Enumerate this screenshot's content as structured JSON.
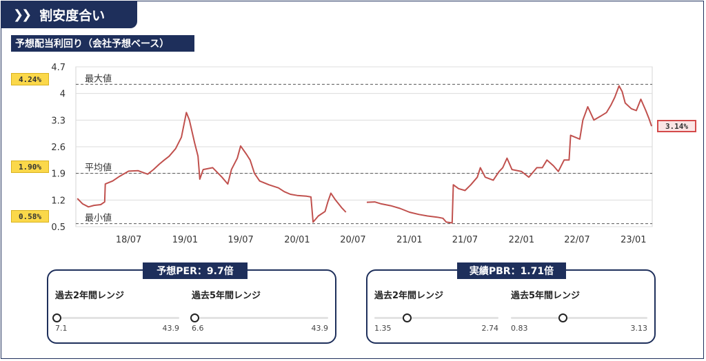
{
  "header": {
    "title": "割安度合い",
    "chevron_icon": "double-chevron-right-icon"
  },
  "subtitle": "予想配当利回り（会社予想ベース）",
  "colors": {
    "navy": "#1e2f5b",
    "line": "#c0504d",
    "tag_yellow": "#fbd84a",
    "tag_red_border": "#d44a4a"
  },
  "chart_data": {
    "type": "line",
    "ylim": [
      0.5,
      4.7
    ],
    "y_ticks": [
      "4.7",
      "4",
      "3.3",
      "2.6",
      "1.9",
      "1.2",
      "0.5"
    ],
    "x_ticks": [
      "18/07",
      "19/01",
      "19/07",
      "20/01",
      "20/07",
      "21/01",
      "21/07",
      "22/01",
      "22/07",
      "23/01"
    ],
    "grid": "horizontal",
    "reference_lines": [
      {
        "label": "最大値",
        "value": 4.24,
        "tag": "4.24%"
      },
      {
        "label": "平均値",
        "value": 1.9,
        "tag": "1.90%"
      },
      {
        "label": "最小値",
        "value": 0.58,
        "tag": "0.58%"
      }
    ],
    "current_tag": "3.14%",
    "series": [
      {
        "segments": [
          [
            [
              "2018-01-15",
              1.24
            ],
            [
              "2018-02-01",
              1.1
            ],
            [
              "2018-02-20",
              1.02
            ],
            [
              "2018-03-10",
              1.06
            ],
            [
              "2018-04-01",
              1.08
            ],
            [
              "2018-04-14",
              1.15
            ],
            [
              "2018-04-16",
              1.62
            ],
            [
              "2018-05-10",
              1.7
            ],
            [
              "2018-06-01",
              1.82
            ],
            [
              "2018-07-01",
              1.96
            ],
            [
              "2018-08-01",
              1.97
            ],
            [
              "2018-09-01",
              1.88
            ],
            [
              "2018-09-20",
              2.0
            ],
            [
              "2018-10-10",
              2.15
            ],
            [
              "2018-10-25",
              2.25
            ],
            [
              "2018-11-10",
              2.35
            ],
            [
              "2018-12-01",
              2.55
            ],
            [
              "2018-12-20",
              2.85
            ],
            [
              "2019-01-05",
              3.5
            ],
            [
              "2019-01-15",
              3.3
            ],
            [
              "2019-02-01",
              2.7
            ],
            [
              "2019-02-12",
              2.35
            ],
            [
              "2019-02-18",
              1.75
            ],
            [
              "2019-03-01",
              2.0
            ],
            [
              "2019-04-01",
              2.05
            ],
            [
              "2019-05-01",
              1.8
            ],
            [
              "2019-05-20",
              1.62
            ],
            [
              "2019-06-01",
              2.0
            ],
            [
              "2019-06-20",
              2.3
            ],
            [
              "2019-07-01",
              2.62
            ],
            [
              "2019-07-20",
              2.4
            ],
            [
              "2019-08-01",
              2.25
            ],
            [
              "2019-08-15",
              1.9
            ],
            [
              "2019-09-01",
              1.7
            ],
            [
              "2019-10-01",
              1.6
            ],
            [
              "2019-11-01",
              1.52
            ],
            [
              "2019-11-20",
              1.42
            ],
            [
              "2019-12-10",
              1.35
            ],
            [
              "2020-01-01",
              1.32
            ],
            [
              "2020-02-01",
              1.3
            ],
            [
              "2020-02-15",
              1.28
            ],
            [
              "2020-02-22",
              0.62
            ],
            [
              "2020-03-10",
              0.78
            ],
            [
              "2020-04-01",
              0.9
            ],
            [
              "2020-04-10",
              1.15
            ],
            [
              "2020-04-20",
              1.38
            ],
            [
              "2020-05-05",
              1.2
            ],
            [
              "2020-05-25",
              1.0
            ],
            [
              "2020-06-08",
              0.88
            ]
          ],
          [
            [
              "2020-08-15",
              1.14
            ],
            [
              "2020-09-10",
              1.15
            ],
            [
              "2020-10-01",
              1.1
            ],
            [
              "2020-11-01",
              1.05
            ],
            [
              "2020-12-01",
              0.98
            ],
            [
              "2021-01-01",
              0.88
            ],
            [
              "2021-02-01",
              0.82
            ],
            [
              "2021-03-01",
              0.78
            ],
            [
              "2021-04-01",
              0.75
            ],
            [
              "2021-04-20",
              0.72
            ],
            [
              "2021-05-01",
              0.62
            ],
            [
              "2021-05-20",
              0.6
            ],
            [
              "2021-05-24",
              1.6
            ],
            [
              "2021-06-10",
              1.5
            ],
            [
              "2021-07-01",
              1.45
            ],
            [
              "2021-07-20",
              1.6
            ],
            [
              "2021-08-10",
              1.8
            ],
            [
              "2021-08-20",
              2.05
            ],
            [
              "2021-09-05",
              1.8
            ],
            [
              "2021-10-01",
              1.72
            ],
            [
              "2021-10-20",
              1.95
            ],
            [
              "2021-11-01",
              2.05
            ],
            [
              "2021-11-15",
              2.3
            ],
            [
              "2021-12-01",
              2.0
            ],
            [
              "2022-01-01",
              1.95
            ],
            [
              "2022-01-25",
              1.8
            ],
            [
              "2022-02-20",
              2.05
            ],
            [
              "2022-03-10",
              2.05
            ],
            [
              "2022-03-25",
              2.25
            ],
            [
              "2022-04-15",
              2.1
            ],
            [
              "2022-05-01",
              1.95
            ],
            [
              "2022-05-20",
              2.25
            ],
            [
              "2022-06-05",
              2.25
            ],
            [
              "2022-06-10",
              2.9
            ],
            [
              "2022-06-25",
              2.85
            ],
            [
              "2022-07-10",
              2.8
            ],
            [
              "2022-07-20",
              3.3
            ],
            [
              "2022-08-05",
              3.65
            ],
            [
              "2022-08-25",
              3.3
            ],
            [
              "2022-09-15",
              3.4
            ],
            [
              "2022-10-05",
              3.5
            ],
            [
              "2022-10-20",
              3.7
            ],
            [
              "2022-11-01",
              3.9
            ],
            [
              "2022-11-15",
              4.2
            ],
            [
              "2022-11-25",
              4.05
            ],
            [
              "2022-12-05",
              3.75
            ],
            [
              "2022-12-25",
              3.6
            ],
            [
              "2023-01-10",
              3.55
            ],
            [
              "2023-01-25",
              3.85
            ],
            [
              "2023-02-10",
              3.55
            ],
            [
              "2023-02-20",
              3.35
            ],
            [
              "2023-03-01",
              3.14
            ]
          ]
        ]
      }
    ]
  },
  "panels": [
    {
      "title": "予想PER：9.7倍",
      "ranges": [
        {
          "label": "過去2年間レンジ",
          "min": "7.1",
          "max": "43.9",
          "position": 0.01
        },
        {
          "label": "過去5年間レンジ",
          "min": "6.6",
          "max": "43.9",
          "position": 0.02
        }
      ]
    },
    {
      "title": "実績PBR：1.71倍",
      "ranges": [
        {
          "label": "過去2年間レンジ",
          "min": "1.35",
          "max": "2.74",
          "position": 0.26
        },
        {
          "label": "過去5年間レンジ",
          "min": "0.83",
          "max": "3.13",
          "position": 0.38
        }
      ]
    }
  ]
}
